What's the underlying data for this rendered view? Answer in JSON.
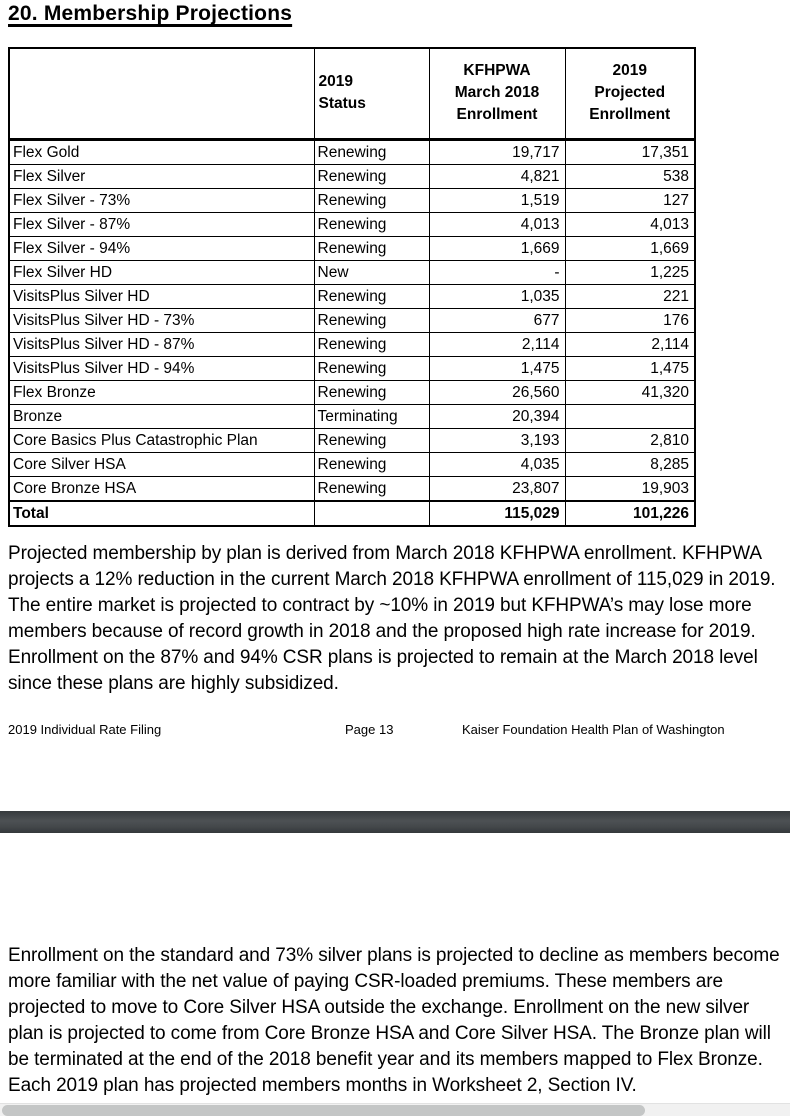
{
  "heading": "20. Membership Projections",
  "table": {
    "headers": [
      "",
      "2019\nStatus",
      "KFHPWA\nMarch 2018\nEnrollment",
      "2019\nProjected\nEnrollment"
    ],
    "rows": [
      {
        "plan": "Flex Gold",
        "status": "Renewing",
        "march_2018": "19,717",
        "projected": "17,351"
      },
      {
        "plan": "Flex Silver",
        "status": "Renewing",
        "march_2018": "4,821",
        "projected": "538"
      },
      {
        "plan": "Flex Silver - 73%",
        "status": "Renewing",
        "march_2018": "1,519",
        "projected": "127"
      },
      {
        "plan": "Flex Silver - 87%",
        "status": "Renewing",
        "march_2018": "4,013",
        "projected": "4,013"
      },
      {
        "plan": "Flex Silver - 94%",
        "status": "Renewing",
        "march_2018": "1,669",
        "projected": "1,669"
      },
      {
        "plan": "Flex Silver HD",
        "status": "New",
        "march_2018": "-",
        "projected": "1,225"
      },
      {
        "plan": "VisitsPlus Silver HD",
        "status": "Renewing",
        "march_2018": "1,035",
        "projected": "221"
      },
      {
        "plan": "VisitsPlus Silver HD - 73%",
        "status": "Renewing",
        "march_2018": "677",
        "projected": "176"
      },
      {
        "plan": "VisitsPlus Silver HD - 87%",
        "status": "Renewing",
        "march_2018": "2,114",
        "projected": "2,114"
      },
      {
        "plan": "VisitsPlus Silver HD - 94%",
        "status": "Renewing",
        "march_2018": "1,475",
        "projected": "1,475"
      },
      {
        "plan": "Flex Bronze",
        "status": "Renewing",
        "march_2018": "26,560",
        "projected": "41,320"
      },
      {
        "plan": "Bronze",
        "status": "Terminating",
        "march_2018": "20,394",
        "projected": ""
      },
      {
        "plan": "Core Basics Plus Catastrophic Plan",
        "status": "Renewing",
        "march_2018": "3,193",
        "projected": "2,810"
      },
      {
        "plan": "Core Silver HSA",
        "status": "Renewing",
        "march_2018": "4,035",
        "projected": "8,285"
      },
      {
        "plan": "Core Bronze HSA",
        "status": "Renewing",
        "march_2018": "23,807",
        "projected": "19,903"
      },
      {
        "plan": "Total",
        "status": "",
        "march_2018": "115,029",
        "projected": "101,226",
        "total": true
      }
    ]
  },
  "paragraph1": "Projected membership by plan is derived from March 2018 KFHPWA enrollment. KFHPWA projects a 12% reduction in the current March 2018 KFHPWA enrollment of 115,029 in 2019. The entire market is projected to contract by ~10% in 2019 but KFHPWA’s may lose more members because of record growth in 2018 and the proposed high rate increase for 2019. Enrollment on the 87% and 94% CSR plans is projected to remain at the March 2018 level since these plans are highly subsidized.",
  "footer": {
    "left": "2019 Individual Rate Filing",
    "center": "Page 13",
    "right": "Kaiser Foundation Health Plan of Washington"
  },
  "paragraph2": "Enrollment on the standard and 73% silver plans is projected to decline as members become more familiar with the net value of paying CSR-loaded premiums. These members are projected to move to Core Silver HSA outside the exchange. Enrollment on the new silver plan is projected to come from Core Bronze HSA and Core Silver HSA. The Bronze plan will be terminated at the end of the 2018 benefit year and its members mapped to Flex Bronze. Each 2019 plan has projected members months in Worksheet 2, Section IV.",
  "colors": {
    "separator_bar": "#3f4346",
    "scrollbar_track": "#f1f1f1",
    "scrollbar_thumb": "#c4c6c6"
  }
}
